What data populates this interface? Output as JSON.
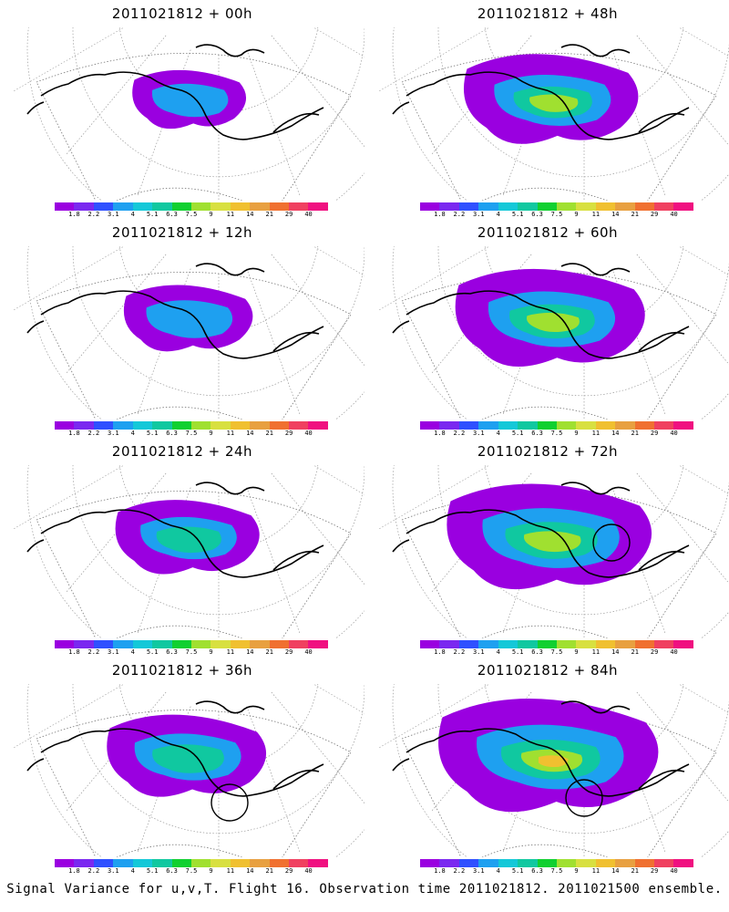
{
  "panels": [
    {
      "title": "2011021812 + 00h",
      "level": 0.15,
      "circle": false,
      "circle_pos": null
    },
    {
      "title": "2011021812 + 48h",
      "level": 0.55,
      "circle": false,
      "circle_pos": null
    },
    {
      "title": "2011021812 + 12h",
      "level": 0.25,
      "circle": false,
      "circle_pos": null
    },
    {
      "title": "2011021812 + 60h",
      "level": 0.65,
      "circle": false,
      "circle_pos": null
    },
    {
      "title": "2011021812 + 24h",
      "level": 0.35,
      "circle": false,
      "circle_pos": null
    },
    {
      "title": "2011021812 + 72h",
      "level": 0.75,
      "circle": true,
      "circle_pos": "center-right"
    },
    {
      "title": "2011021812 + 36h",
      "level": 0.45,
      "circle": true,
      "circle_pos": "lower-right"
    },
    {
      "title": "2011021812 + 84h",
      "level": 0.85,
      "circle": true,
      "circle_pos": "center"
    }
  ],
  "legend": {
    "colors": [
      "#9a00e0",
      "#7a28f0",
      "#2f50ff",
      "#1ea0f0",
      "#14c8d8",
      "#10c8a0",
      "#10d030",
      "#a0e030",
      "#d8e040",
      "#f0c030",
      "#e8a040",
      "#f07030",
      "#f04060",
      "#f01080"
    ],
    "labels": [
      "1.8",
      "2.2",
      "3.1",
      "4",
      "5.1",
      "6.3",
      "7.5",
      "9",
      "11",
      "14",
      "21",
      "29",
      "40"
    ]
  },
  "footer": "Signal Variance for u,v,T. Flight 16. Observation time 2011021812. 2011021500 ensemble."
}
